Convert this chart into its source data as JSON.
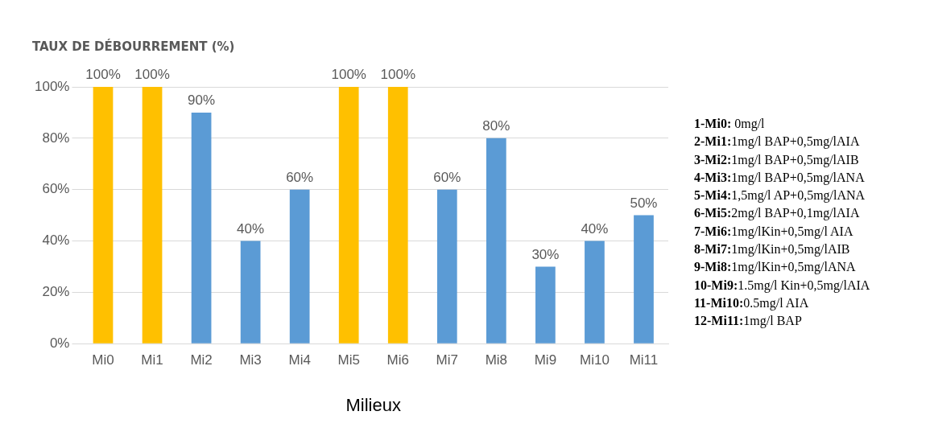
{
  "chart_data": {
    "type": "bar",
    "title": "TAUX DE DÉBOURREMENT (%)",
    "xlabel": "Milieux",
    "categories": [
      "Mi0",
      "Mi1",
      "Mi2",
      "Mi3",
      "Mi4",
      "Mi5",
      "Mi6",
      "Mi7",
      "Mi8",
      "Mi9",
      "Mi10",
      "Mi11"
    ],
    "values": [
      100,
      100,
      90,
      40,
      60,
      100,
      100,
      60,
      80,
      30,
      40,
      50
    ],
    "colors": [
      "#ffc000",
      "#ffc000",
      "#5b9bd5",
      "#5b9bd5",
      "#5b9bd5",
      "#ffc000",
      "#ffc000",
      "#5b9bd5",
      "#5b9bd5",
      "#5b9bd5",
      "#5b9bd5",
      "#5b9bd5"
    ],
    "value_labels": [
      "100%",
      "100%",
      "90%",
      "40%",
      "60%",
      "100%",
      "100%",
      "60%",
      "80%",
      "30%",
      "40%",
      "50%"
    ],
    "ylim": [
      0,
      100
    ],
    "yticks": [
      {
        "value": 0,
        "label": "0%"
      },
      {
        "value": 20,
        "label": "20%"
      },
      {
        "value": 40,
        "label": "40%"
      },
      {
        "value": 60,
        "label": "60%"
      },
      {
        "value": 80,
        "label": "80%"
      },
      {
        "value": 100,
        "label": "100%"
      }
    ],
    "grid": "y",
    "legend": false,
    "annotations": [
      "1-Mi0: 0mg/l",
      "2-Mi1:1mg/l BAP+0,5mg/lAIA",
      "3-Mi2:1mg/l BAP+0,5mg/lAIB",
      "4-Mi3:1mg/l BAP+0,5mg/lANA",
      "5-Mi4:1,5mg/l AP+0,5mg/lANA",
      "6-Mi5:2mg/l BAP+0,1mg/lAIA",
      "7-Mi6:1mg/lKin+0,5mg/l AIA",
      "8-Mi7:1mg/lKin+0,5mg/lAIB",
      "9-Mi8:1mg/lKin+0,5mg/lANA",
      "10-Mi9:1.5mg/l Kin+0,5mg/lAIA",
      "11-Mi10:0.5mg/l AIA",
      "12-Mi11:1mg/l BAP"
    ]
  }
}
